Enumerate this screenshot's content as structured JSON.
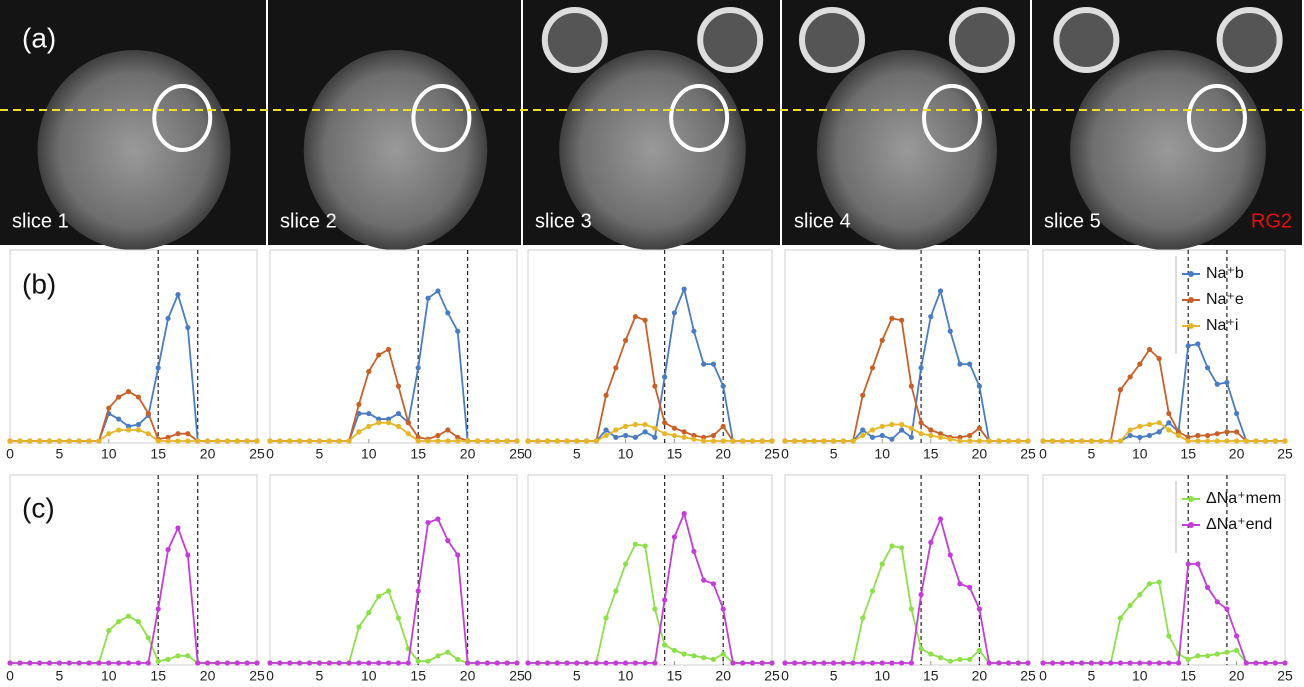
{
  "panel_labels": [
    "(a)",
    "(b)",
    "(c)"
  ],
  "images": [
    {
      "label": "slice 1"
    },
    {
      "label": "slice 2"
    },
    {
      "label": "slice 3"
    },
    {
      "label": "slice 4"
    },
    {
      "label": "slice 5",
      "marker": "RG2"
    }
  ],
  "chart_data": [
    {
      "type": "line",
      "x": [
        0,
        1,
        2,
        3,
        4,
        5,
        6,
        7,
        8,
        9,
        10,
        11,
        12,
        13,
        14,
        15,
        16,
        17,
        18,
        19,
        20,
        21,
        22,
        23,
        24,
        25
      ],
      "xlim": [
        0,
        25
      ],
      "xticks": [
        0,
        5,
        10,
        15,
        20,
        25
      ],
      "ylim": [
        0,
        1
      ],
      "vlines": [
        15,
        19
      ],
      "series": [
        {
          "color": "#4a7cc4",
          "values": [
            0,
            0,
            0,
            0,
            0,
            0,
            0,
            0,
            0,
            0,
            0.15,
            0.12,
            0.08,
            0.09,
            0.14,
            0.4,
            0.67,
            0.8,
            0.62,
            0,
            0,
            0,
            0,
            0,
            0,
            0
          ]
        },
        {
          "color": "#c8602a",
          "values": [
            0,
            0,
            0,
            0,
            0,
            0,
            0,
            0,
            0,
            0,
            0.18,
            0.24,
            0.27,
            0.24,
            0.15,
            0.01,
            0.02,
            0.04,
            0.04,
            0,
            0,
            0,
            0,
            0,
            0,
            0
          ]
        },
        {
          "color": "#e6b629",
          "values": [
            0,
            0,
            0,
            0,
            0,
            0,
            0,
            0,
            0,
            0,
            0.04,
            0.06,
            0.06,
            0.06,
            0.04,
            0,
            0,
            0,
            0,
            0,
            0,
            0,
            0,
            0,
            0,
            0
          ]
        }
      ]
    },
    {
      "type": "line",
      "x": [
        0,
        1,
        2,
        3,
        4,
        5,
        6,
        7,
        8,
        9,
        10,
        11,
        12,
        13,
        14,
        15,
        16,
        17,
        18,
        19,
        20,
        21,
        22,
        23,
        24,
        25
      ],
      "xlim": [
        0,
        25
      ],
      "xticks": [
        0,
        5,
        10,
        15,
        20,
        25
      ],
      "ylim": [
        0,
        1
      ],
      "vlines": [
        15,
        20
      ],
      "series": [
        {
          "color": "#4a7cc4",
          "values": [
            0,
            0,
            0,
            0,
            0,
            0,
            0,
            0,
            0,
            0.15,
            0.15,
            0.12,
            0.12,
            0.15,
            0.1,
            0.4,
            0.78,
            0.82,
            0.7,
            0.6,
            0,
            0,
            0,
            0,
            0,
            0
          ]
        },
        {
          "color": "#c8602a",
          "values": [
            0,
            0,
            0,
            0,
            0,
            0,
            0,
            0,
            0,
            0.2,
            0.38,
            0.47,
            0.5,
            0.3,
            0.1,
            0.02,
            0.01,
            0.03,
            0.06,
            0.02,
            0,
            0,
            0,
            0,
            0,
            0
          ]
        },
        {
          "color": "#e6b629",
          "values": [
            0,
            0,
            0,
            0,
            0,
            0,
            0,
            0,
            0,
            0.05,
            0.08,
            0.1,
            0.1,
            0.08,
            0.04,
            0,
            0,
            0,
            0,
            0,
            0,
            0,
            0,
            0,
            0,
            0
          ]
        }
      ]
    },
    {
      "type": "line",
      "x": [
        0,
        1,
        2,
        3,
        4,
        5,
        6,
        7,
        8,
        9,
        10,
        11,
        12,
        13,
        14,
        15,
        16,
        17,
        18,
        19,
        20,
        21,
        22,
        23,
        24,
        25
      ],
      "xlim": [
        0,
        25
      ],
      "xticks": [
        0,
        5,
        10,
        15,
        20,
        25
      ],
      "ylim": [
        0,
        1
      ],
      "vlines": [
        14,
        20
      ],
      "series": [
        {
          "color": "#4a7cc4",
          "values": [
            0,
            0,
            0,
            0,
            0,
            0,
            0,
            0,
            0.06,
            0.02,
            0.03,
            0.02,
            0.05,
            0.02,
            0.35,
            0.7,
            0.83,
            0.6,
            0.42,
            0.42,
            0.3,
            0,
            0,
            0,
            0,
            0
          ]
        },
        {
          "color": "#c8602a",
          "values": [
            0,
            0,
            0,
            0,
            0,
            0,
            0,
            0,
            0.25,
            0.4,
            0.55,
            0.68,
            0.66,
            0.3,
            0.1,
            0.07,
            0.05,
            0.03,
            0.02,
            0.03,
            0.08,
            0,
            0,
            0,
            0,
            0
          ]
        },
        {
          "color": "#e6b629",
          "values": [
            0,
            0,
            0,
            0,
            0,
            0,
            0,
            0,
            0.03,
            0.06,
            0.08,
            0.09,
            0.09,
            0.07,
            0.04,
            0.03,
            0.02,
            0.01,
            0,
            0,
            0,
            0,
            0,
            0,
            0,
            0
          ]
        }
      ]
    },
    {
      "type": "line",
      "x": [
        0,
        1,
        2,
        3,
        4,
        5,
        6,
        7,
        8,
        9,
        10,
        11,
        12,
        13,
        14,
        15,
        16,
        17,
        18,
        19,
        20,
        21,
        22,
        23,
        24,
        25
      ],
      "xlim": [
        0,
        25
      ],
      "xticks": [
        0,
        5,
        10,
        15,
        20,
        25
      ],
      "ylim": [
        0,
        1
      ],
      "vlines": [
        14,
        20
      ],
      "series": [
        {
          "color": "#4a7cc4",
          "values": [
            0,
            0,
            0,
            0,
            0,
            0,
            0,
            0,
            0.06,
            0.02,
            0.03,
            0.01,
            0.06,
            0.02,
            0.4,
            0.68,
            0.82,
            0.6,
            0.42,
            0.42,
            0.3,
            0,
            0,
            0,
            0,
            0
          ]
        },
        {
          "color": "#c8602a",
          "values": [
            0,
            0,
            0,
            0,
            0,
            0,
            0,
            0,
            0.25,
            0.4,
            0.55,
            0.67,
            0.66,
            0.3,
            0.1,
            0.06,
            0.04,
            0.02,
            0.02,
            0.03,
            0.07,
            0,
            0,
            0,
            0,
            0
          ]
        },
        {
          "color": "#e6b629",
          "values": [
            0,
            0,
            0,
            0,
            0,
            0,
            0,
            0,
            0.03,
            0.06,
            0.08,
            0.09,
            0.09,
            0.07,
            0.04,
            0.03,
            0.02,
            0.01,
            0,
            0,
            0,
            0,
            0,
            0,
            0,
            0
          ]
        }
      ]
    },
    {
      "type": "line",
      "x": [
        0,
        1,
        2,
        3,
        4,
        5,
        6,
        7,
        8,
        9,
        10,
        11,
        12,
        13,
        14,
        15,
        16,
        17,
        18,
        19,
        20,
        21,
        22,
        23,
        24,
        25
      ],
      "xlim": [
        0,
        25
      ],
      "xticks": [
        0,
        5,
        10,
        15,
        20,
        25
      ],
      "ylim": [
        0,
        1
      ],
      "vlines": [
        15,
        19
      ],
      "legend": "top-right",
      "series": [
        {
          "name": "Na⁺b",
          "color": "#4a7cc4",
          "values": [
            0,
            0,
            0,
            0,
            0,
            0,
            0,
            0,
            0,
            0.03,
            0.02,
            0.03,
            0.05,
            0.1,
            0.05,
            0.52,
            0.53,
            0.4,
            0.31,
            0.32,
            0.15,
            0,
            0,
            0,
            0,
            0
          ]
        },
        {
          "name": "Na⁺e",
          "color": "#c8602a",
          "values": [
            0,
            0,
            0,
            0,
            0,
            0,
            0,
            0,
            0.28,
            0.35,
            0.42,
            0.5,
            0.45,
            0.15,
            0.05,
            0.02,
            0.03,
            0.03,
            0.04,
            0.05,
            0.05,
            0,
            0,
            0,
            0,
            0
          ]
        },
        {
          "name": "Na⁺i",
          "color": "#e6b629",
          "values": [
            0,
            0,
            0,
            0,
            0,
            0,
            0,
            0,
            0,
            0.06,
            0.08,
            0.09,
            0.1,
            0.06,
            0.03,
            0,
            0,
            0,
            0,
            0,
            0,
            0,
            0,
            0,
            0,
            0
          ]
        }
      ]
    },
    {
      "type": "line",
      "x": [
        0,
        1,
        2,
        3,
        4,
        5,
        6,
        7,
        8,
        9,
        10,
        11,
        12,
        13,
        14,
        15,
        16,
        17,
        18,
        19,
        20,
        21,
        22,
        23,
        24,
        25
      ],
      "xlim": [
        0,
        25
      ],
      "xticks": [
        0,
        5,
        10,
        15,
        20,
        25
      ],
      "ylim": [
        0,
        1
      ],
      "vlines": [
        15,
        19
      ],
      "series": [
        {
          "color": "#8ee04a",
          "values": [
            0,
            0,
            0,
            0,
            0,
            0,
            0,
            0,
            0,
            0,
            0.18,
            0.23,
            0.26,
            0.23,
            0.14,
            0.01,
            0.02,
            0.04,
            0.04,
            0,
            0,
            0,
            0,
            0,
            0,
            0
          ]
        },
        {
          "color": "#c43dd8",
          "values": [
            0,
            0,
            0,
            0,
            0,
            0,
            0,
            0,
            0,
            0,
            0,
            0,
            0,
            0,
            0,
            0.3,
            0.63,
            0.75,
            0.6,
            0,
            0,
            0,
            0,
            0,
            0,
            0
          ]
        }
      ]
    },
    {
      "type": "line",
      "x": [
        0,
        1,
        2,
        3,
        4,
        5,
        6,
        7,
        8,
        9,
        10,
        11,
        12,
        13,
        14,
        15,
        16,
        17,
        18,
        19,
        20,
        21,
        22,
        23,
        24,
        25
      ],
      "xlim": [
        0,
        25
      ],
      "xticks": [
        0,
        5,
        10,
        15,
        20,
        25
      ],
      "ylim": [
        0,
        1
      ],
      "vlines": [
        15,
        20
      ],
      "series": [
        {
          "color": "#8ee04a",
          "values": [
            0,
            0,
            0,
            0,
            0,
            0,
            0,
            0,
            0,
            0.2,
            0.28,
            0.37,
            0.4,
            0.25,
            0.08,
            0.01,
            0.01,
            0.04,
            0.06,
            0.02,
            0,
            0,
            0,
            0,
            0,
            0
          ]
        },
        {
          "color": "#c43dd8",
          "values": [
            0,
            0,
            0,
            0,
            0,
            0,
            0,
            0,
            0,
            0,
            0,
            0,
            0,
            0,
            0,
            0.4,
            0.78,
            0.8,
            0.68,
            0.6,
            0,
            0,
            0,
            0,
            0,
            0
          ]
        }
      ]
    },
    {
      "type": "line",
      "x": [
        0,
        1,
        2,
        3,
        4,
        5,
        6,
        7,
        8,
        9,
        10,
        11,
        12,
        13,
        14,
        15,
        16,
        17,
        18,
        19,
        20,
        21,
        22,
        23,
        24,
        25
      ],
      "xlim": [
        0,
        25
      ],
      "xticks": [
        0,
        5,
        10,
        15,
        20,
        25
      ],
      "ylim": [
        0,
        1
      ],
      "vlines": [
        14,
        20
      ],
      "series": [
        {
          "color": "#8ee04a",
          "values": [
            0,
            0,
            0,
            0,
            0,
            0,
            0,
            0,
            0.25,
            0.4,
            0.55,
            0.66,
            0.65,
            0.3,
            0.1,
            0.07,
            0.05,
            0.04,
            0.03,
            0.02,
            0.05,
            0,
            0,
            0,
            0,
            0
          ]
        },
        {
          "color": "#c43dd8",
          "values": [
            0,
            0,
            0,
            0,
            0,
            0,
            0,
            0,
            0,
            0,
            0,
            0,
            0,
            0,
            0.35,
            0.7,
            0.83,
            0.62,
            0.46,
            0.44,
            0.3,
            0,
            0,
            0,
            0,
            0
          ]
        }
      ]
    },
    {
      "type": "line",
      "x": [
        0,
        1,
        2,
        3,
        4,
        5,
        6,
        7,
        8,
        9,
        10,
        11,
        12,
        13,
        14,
        15,
        16,
        17,
        18,
        19,
        20,
        21,
        22,
        23,
        24,
        25
      ],
      "xlim": [
        0,
        25
      ],
      "xticks": [
        0,
        5,
        10,
        15,
        20,
        25
      ],
      "ylim": [
        0,
        1
      ],
      "vlines": [
        14,
        20
      ],
      "series": [
        {
          "color": "#8ee04a",
          "values": [
            0,
            0,
            0,
            0,
            0,
            0,
            0,
            0,
            0.25,
            0.4,
            0.55,
            0.65,
            0.64,
            0.3,
            0.08,
            0.05,
            0.03,
            0.01,
            0.02,
            0.02,
            0.07,
            0,
            0,
            0,
            0,
            0
          ]
        },
        {
          "color": "#c43dd8",
          "values": [
            0,
            0,
            0,
            0,
            0,
            0,
            0,
            0,
            0,
            0,
            0,
            0,
            0,
            0,
            0.38,
            0.67,
            0.8,
            0.6,
            0.44,
            0.42,
            0.3,
            0,
            0,
            0,
            0,
            0
          ]
        }
      ]
    },
    {
      "type": "line",
      "x": [
        0,
        1,
        2,
        3,
        4,
        5,
        6,
        7,
        8,
        9,
        10,
        11,
        12,
        13,
        14,
        15,
        16,
        17,
        18,
        19,
        20,
        21,
        22,
        23,
        24,
        25
      ],
      "xlim": [
        0,
        25
      ],
      "xticks": [
        0,
        5,
        10,
        15,
        20,
        25
      ],
      "ylim": [
        0,
        1
      ],
      "vlines": [
        15,
        19
      ],
      "legend": "top-right",
      "series": [
        {
          "name": "ΔNa⁺mem",
          "color": "#8ee04a",
          "values": [
            0,
            0,
            0,
            0,
            0,
            0,
            0,
            0,
            0.25,
            0.32,
            0.38,
            0.44,
            0.45,
            0.15,
            0.05,
            0.02,
            0.04,
            0.04,
            0.05,
            0.06,
            0.07,
            0,
            0,
            0,
            0,
            0
          ]
        },
        {
          "name": "ΔNa⁺end",
          "color": "#c43dd8",
          "values": [
            0,
            0,
            0,
            0,
            0,
            0,
            0,
            0,
            0,
            0,
            0,
            0,
            0,
            0,
            0,
            0.55,
            0.55,
            0.42,
            0.34,
            0.3,
            0.15,
            0,
            0,
            0,
            0,
            0
          ]
        }
      ]
    }
  ]
}
